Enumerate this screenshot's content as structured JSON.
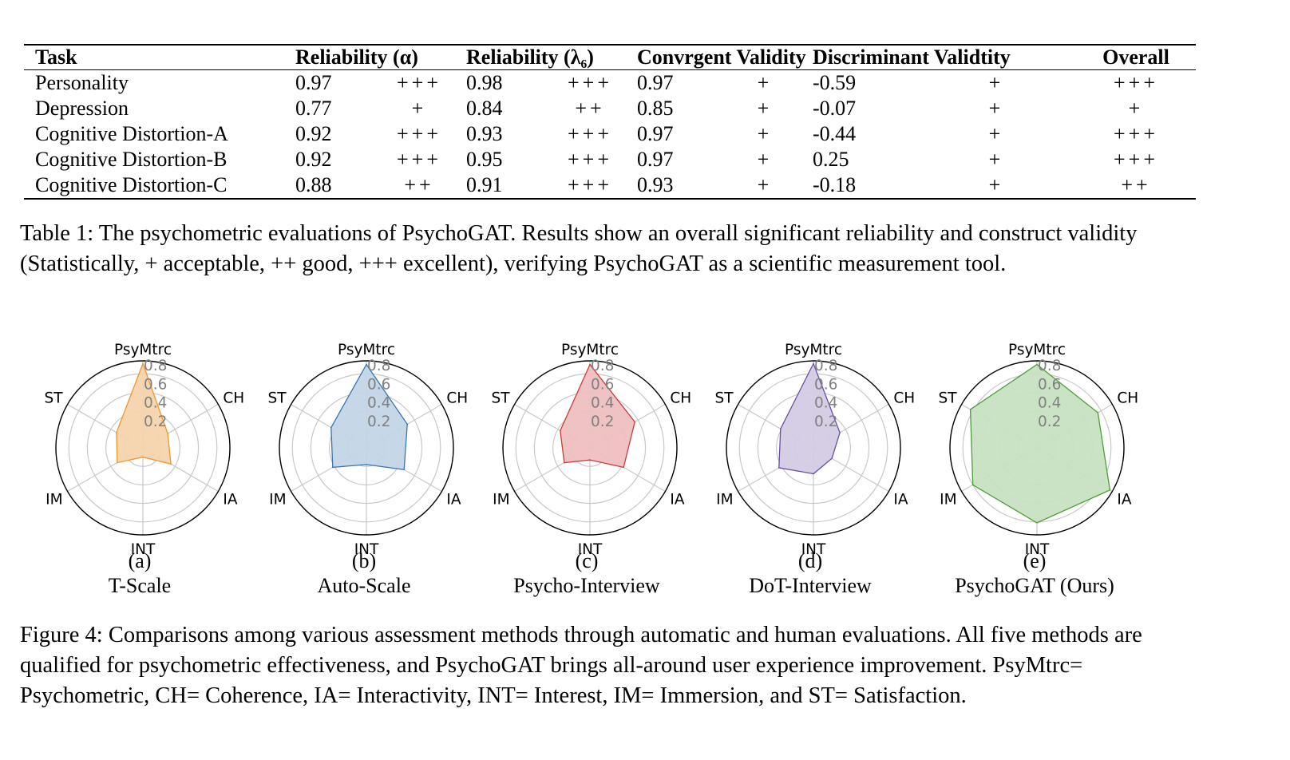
{
  "table": {
    "headers": {
      "task": "Task",
      "rel_alpha": "Reliability (α)",
      "rel_lambda": "Reliability (λ₆)",
      "convergent": "Convrgent Validity",
      "discriminant": "Discriminant Validtity",
      "overall": "Overall"
    },
    "rows": [
      {
        "task": "Personality",
        "alpha": "0.97",
        "alpha_mark": "+++",
        "lambda": "0.98",
        "lambda_mark": "+++",
        "conv": "0.97",
        "conv_mark": "+",
        "disc": "-0.59",
        "disc_mark": "+",
        "overall": "+++"
      },
      {
        "task": "Depression",
        "alpha": "0.77",
        "alpha_mark": "+",
        "lambda": "0.84",
        "lambda_mark": "++",
        "conv": "0.85",
        "conv_mark": "+",
        "disc": "-0.07",
        "disc_mark": "+",
        "overall": "+"
      },
      {
        "task": "Cognitive Distortion-A",
        "alpha": "0.92",
        "alpha_mark": "+++",
        "lambda": "0.93",
        "lambda_mark": "+++",
        "conv": "0.97",
        "conv_mark": "+",
        "disc": "-0.44",
        "disc_mark": "+",
        "overall": "+++"
      },
      {
        "task": "Cognitive Distortion-B",
        "alpha": "0.92",
        "alpha_mark": "+++",
        "lambda": "0.95",
        "lambda_mark": "+++",
        "conv": "0.97",
        "conv_mark": "+",
        "disc": " 0.25",
        "disc_mark": "+",
        "overall": "+++"
      },
      {
        "task": "Cognitive Distortion-C",
        "alpha": "0.88",
        "alpha_mark": "++",
        "lambda": "0.91",
        "lambda_mark": "+++",
        "conv": "0.93",
        "conv_mark": "+",
        "disc": "-0.18",
        "disc_mark": "+",
        "overall": "++"
      }
    ],
    "caption": "Table 1:  The psychometric evaluations of PsychoGAT. Results show an overall significant reliability and construct validity (Statistically, + acceptable, ++ good, +++ excellent), verifying PsychoGAT as a scientific measurement tool."
  },
  "figure": {
    "caption": "Figure 4: Comparisons among various assessment methods through automatic and human evaluations. All five methods are qualified for psychometric effectiveness, and PsychoGAT brings all-around user experience improvement. PsyMtrc= Psychometric, CH= Coherence, IA= Interactivity, INT= Interest, IM= Immersion, and ST= Satisfaction."
  },
  "chart_data": [
    {
      "type": "radar",
      "panel": "(a)",
      "title": "T-Scale",
      "axes": [
        "PsyMtrc",
        "CH",
        "IA",
        "INT",
        "IM",
        "ST"
      ],
      "values": [
        0.91,
        0.31,
        0.35,
        0.1,
        0.32,
        0.33
      ],
      "rticks": [
        "0.2",
        "0.4",
        "0.6",
        "0.8"
      ],
      "rticks_values": [
        0.2,
        0.4,
        0.6,
        0.8
      ],
      "rlim": [
        0,
        0.94
      ],
      "color": "#f0962e",
      "fill": "#f5d4ad"
    },
    {
      "type": "radar",
      "panel": "(b)",
      "title": "Auto-Scale",
      "axes": [
        "PsyMtrc",
        "CH",
        "IA",
        "INT",
        "IM",
        "ST"
      ],
      "values": [
        0.9,
        0.51,
        0.47,
        0.18,
        0.42,
        0.44
      ],
      "rticks": [
        "0.2",
        "0.4",
        "0.6",
        "0.8"
      ],
      "rticks_values": [
        0.2,
        0.4,
        0.6,
        0.8
      ],
      "rlim": [
        0,
        0.94
      ],
      "color": "#3a74b3",
      "fill": "#c3d5e7"
    },
    {
      "type": "radar",
      "panel": "(c)",
      "title": "Psycho-Interview",
      "axes": [
        "PsyMtrc",
        "CH",
        "IA",
        "INT",
        "IM",
        "ST"
      ],
      "values": [
        0.9,
        0.56,
        0.42,
        0.13,
        0.32,
        0.37
      ],
      "rticks": [
        "0.2",
        "0.4",
        "0.6",
        "0.8"
      ],
      "rticks_values": [
        0.2,
        0.4,
        0.6,
        0.8
      ],
      "rlim": [
        0,
        0.94
      ],
      "color": "#d0393a",
      "fill": "#eec0c0"
    },
    {
      "type": "radar",
      "panel": "(d)",
      "title": "DoT-Interview",
      "axes": [
        "PsyMtrc",
        "CH",
        "IA",
        "INT",
        "IM",
        "ST"
      ],
      "values": [
        0.91,
        0.33,
        0.23,
        0.28,
        0.43,
        0.41
      ],
      "rticks": [
        "0.2",
        "0.4",
        "0.6",
        "0.8"
      ],
      "rticks_values": [
        0.2,
        0.4,
        0.6,
        0.8
      ],
      "rlim": [
        0,
        0.94
      ],
      "color": "#6a4fa8",
      "fill": "#d4cbe4"
    },
    {
      "type": "radar",
      "panel": "(e)",
      "title": "PsychoGAT (Ours)",
      "axes": [
        "PsyMtrc",
        "CH",
        "IA",
        "INT",
        "IM",
        "ST"
      ],
      "values": [
        0.9,
        0.76,
        0.91,
        0.81,
        0.8,
        0.83
      ],
      "rticks": [
        "0.2",
        "0.4",
        "0.6",
        "0.8"
      ],
      "rticks_values": [
        0.2,
        0.4,
        0.6,
        0.8
      ],
      "rlim": [
        0,
        0.94
      ],
      "color": "#4e9c3a",
      "fill": "#c8e2c2"
    }
  ]
}
